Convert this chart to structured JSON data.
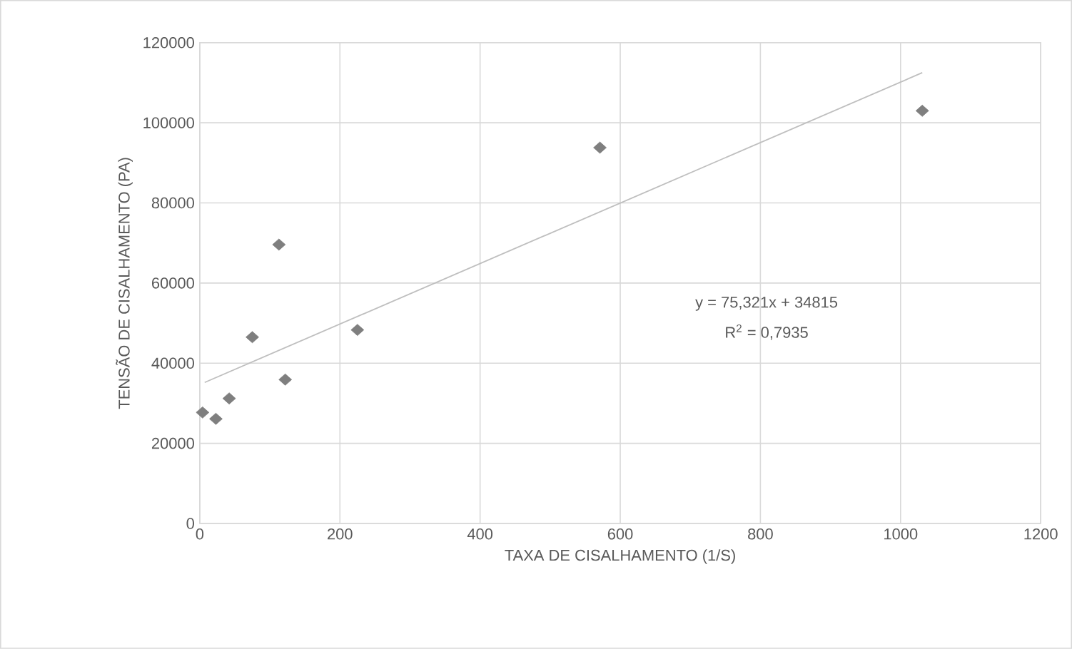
{
  "chart_data": {
    "type": "scatter",
    "xlabel": "TAXA DE CISALHAMENTO (1/S)",
    "ylabel": "TENSÃO DE CISALHAMENTO (PA)",
    "xlim": [
      0,
      1200
    ],
    "ylim": [
      0,
      120000
    ],
    "xticks": [
      0,
      200,
      400,
      600,
      800,
      1000,
      1200
    ],
    "yticks": [
      0,
      20000,
      40000,
      60000,
      80000,
      100000,
      120000
    ],
    "grid": true,
    "marker": "diamond",
    "series": [
      {
        "color": "#7f7f7f",
        "x": [
          4,
          23,
          42,
          75,
          113,
          122,
          225,
          571,
          1031
        ],
        "values": [
          27700,
          26100,
          31200,
          46500,
          69600,
          35900,
          48300,
          93800,
          103000
        ]
      },
      {
        "type": "line",
        "color": "#bfbfbf",
        "marker": "none",
        "x": [
          7,
          1031
        ],
        "values": [
          35200,
          112500
        ]
      }
    ],
    "annotations": [
      "y = 75,321x + 34815",
      "R$^{2}$ = 0,7935"
    ]
  }
}
